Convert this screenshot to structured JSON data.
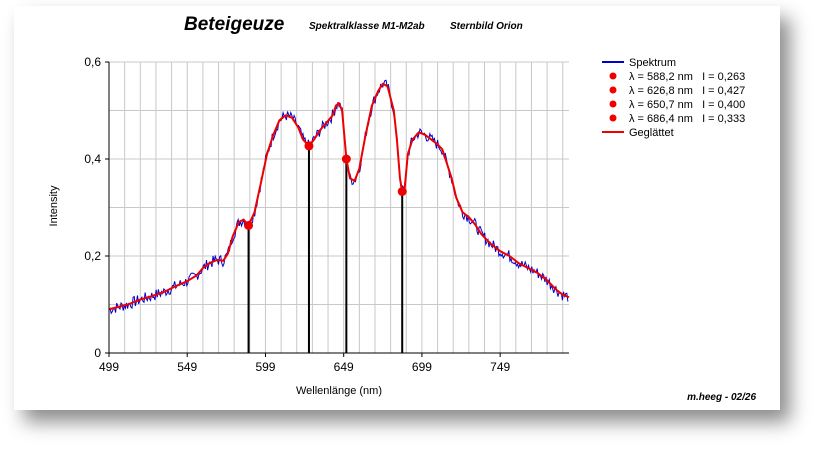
{
  "chart_data": {
    "type": "line",
    "title": "Beteigeuze",
    "subtitle_class": "Spektralklasse M1-M2ab",
    "subtitle_constellation": "Sternbild Orion",
    "xlabel": "Wellenlänge (nm)",
    "ylabel": "Intensity",
    "xlim": [
      499,
      793
    ],
    "ylim": [
      0,
      0.6
    ],
    "x_ticks": [
      {
        "value": 499,
        "label": "499"
      },
      {
        "value": 549,
        "label": "549"
      },
      {
        "value": 599,
        "label": "599"
      },
      {
        "value": 649,
        "label": "649"
      },
      {
        "value": 699,
        "label": "699"
      },
      {
        "value": 749,
        "label": "749"
      }
    ],
    "y_ticks": [
      {
        "value": 0,
        "label": "0"
      },
      {
        "value": 0.2,
        "label": "0,2"
      },
      {
        "value": 0.4,
        "label": "0,4"
      },
      {
        "value": 0.6,
        "label": "0,6"
      }
    ],
    "grid": true,
    "legend_position": "right",
    "credit": "m.heeg - 02/26",
    "series": [
      {
        "name": "Spektrum",
        "color": "#0000cc",
        "noise": 0.012,
        "x": [
          499,
          505,
          511,
          519,
          527,
          535,
          541,
          549,
          555,
          559,
          563,
          568,
          572,
          575,
          578,
          582,
          585,
          588.2,
          592,
          596,
          600,
          604,
          608,
          612,
          616,
          620,
          623,
          626.8,
          630,
          634,
          638,
          642,
          644,
          646,
          648,
          650.7,
          653,
          656,
          659,
          663,
          667,
          671,
          674,
          677,
          681,
          683,
          685,
          686.4,
          688,
          690,
          693,
          697,
          701,
          705,
          709,
          712,
          715,
          718,
          721,
          725,
          729,
          733,
          737,
          743,
          749,
          755,
          761,
          767,
          773,
          779,
          785,
          789,
          793
        ],
        "y": [
          0.09,
          0.095,
          0.1,
          0.11,
          0.118,
          0.127,
          0.137,
          0.148,
          0.16,
          0.175,
          0.185,
          0.192,
          0.19,
          0.205,
          0.24,
          0.27,
          0.275,
          0.263,
          0.29,
          0.35,
          0.41,
          0.45,
          0.48,
          0.49,
          0.485,
          0.465,
          0.44,
          0.427,
          0.44,
          0.46,
          0.475,
          0.49,
          0.51,
          0.515,
          0.5,
          0.4,
          0.36,
          0.355,
          0.38,
          0.45,
          0.51,
          0.54,
          0.555,
          0.55,
          0.5,
          0.44,
          0.36,
          0.333,
          0.34,
          0.41,
          0.44,
          0.455,
          0.45,
          0.44,
          0.43,
          0.42,
          0.39,
          0.36,
          0.32,
          0.29,
          0.28,
          0.265,
          0.245,
          0.225,
          0.21,
          0.2,
          0.185,
          0.175,
          0.165,
          0.15,
          0.13,
          0.12,
          0.115
        ]
      },
      {
        "name": "Geglättet",
        "color": "#ee0000",
        "x": [
          499,
          505,
          511,
          519,
          527,
          535,
          541,
          549,
          555,
          559,
          563,
          568,
          572,
          575,
          578,
          582,
          585,
          588.2,
          592,
          596,
          600,
          604,
          608,
          612,
          616,
          620,
          623,
          626.8,
          630,
          634,
          638,
          642,
          644,
          646,
          648,
          650.7,
          653,
          656,
          659,
          663,
          667,
          671,
          674,
          677,
          681,
          683,
          685,
          686.4,
          688,
          690,
          693,
          697,
          701,
          705,
          709,
          712,
          715,
          718,
          721,
          725,
          729,
          733,
          737,
          743,
          749,
          755,
          761,
          767,
          773,
          779,
          785,
          789,
          793
        ],
        "y": [
          0.09,
          0.095,
          0.1,
          0.11,
          0.118,
          0.127,
          0.137,
          0.148,
          0.16,
          0.175,
          0.185,
          0.192,
          0.19,
          0.205,
          0.24,
          0.27,
          0.275,
          0.263,
          0.29,
          0.35,
          0.41,
          0.45,
          0.48,
          0.49,
          0.485,
          0.465,
          0.44,
          0.427,
          0.44,
          0.46,
          0.475,
          0.49,
          0.51,
          0.515,
          0.5,
          0.4,
          0.36,
          0.355,
          0.38,
          0.45,
          0.51,
          0.54,
          0.555,
          0.55,
          0.5,
          0.44,
          0.36,
          0.333,
          0.34,
          0.41,
          0.44,
          0.455,
          0.45,
          0.44,
          0.43,
          0.42,
          0.39,
          0.36,
          0.32,
          0.29,
          0.28,
          0.265,
          0.245,
          0.225,
          0.21,
          0.2,
          0.185,
          0.175,
          0.165,
          0.15,
          0.13,
          0.12,
          0.115
        ]
      }
    ],
    "markers": [
      {
        "label": "λ = 588,2 nm   I = 0,263",
        "x": 588.2,
        "y": 0.263,
        "color": "#ee0000"
      },
      {
        "label": "λ = 626,8 nm   I = 0,427",
        "x": 626.8,
        "y": 0.427,
        "color": "#ee0000"
      },
      {
        "label": "λ = 650,7 nm   I = 0,400",
        "x": 650.7,
        "y": 0.4,
        "color": "#ee0000"
      },
      {
        "label": "λ = 686,4 nm   I = 0,333",
        "x": 686.4,
        "y": 0.333,
        "color": "#ee0000"
      }
    ]
  }
}
